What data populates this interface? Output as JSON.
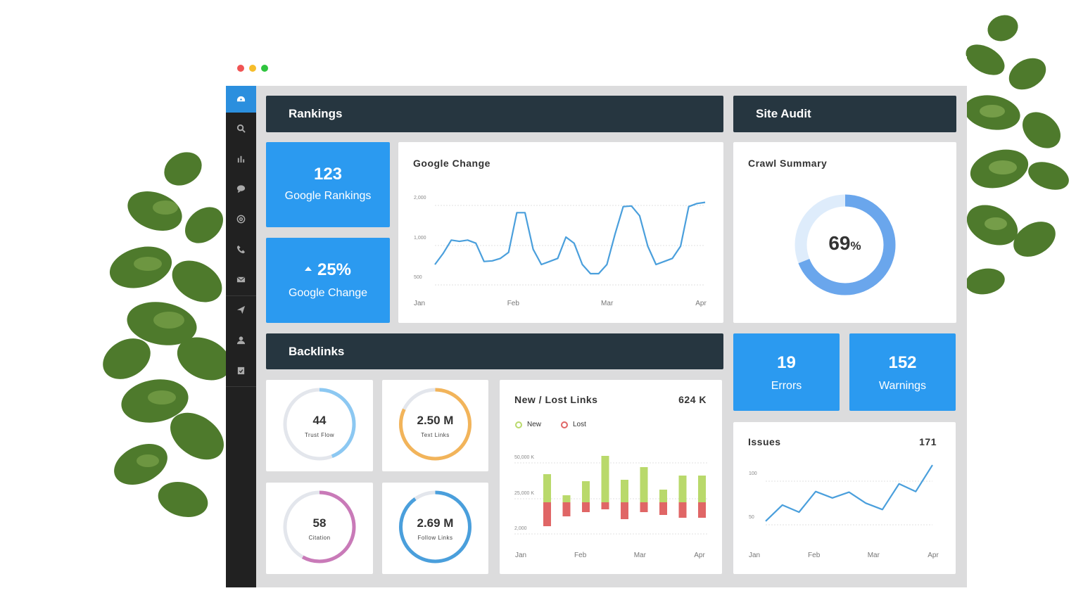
{
  "colors": {
    "accent": "#2b9af0",
    "header": "#263640",
    "sidebar": "#212121",
    "line": "#4a9fdc",
    "new": "#b9d96b",
    "lost": "#e06666"
  },
  "sidebar": {
    "icons": [
      "dashboard-icon",
      "search-icon",
      "bar-chart-icon",
      "chat-icon",
      "at-icon",
      "phone-icon",
      "mail-icon",
      "send-icon",
      "user-icon",
      "clipboard-icon"
    ]
  },
  "rankings": {
    "header": "Rankings",
    "rankings_value": "123",
    "rankings_label": "Google Rankings",
    "change_value": "25%",
    "change_label": "Google Change"
  },
  "site_audit": {
    "header": "Site Audit",
    "crawl_title": "Crawl Summary",
    "crawl_value": "69",
    "crawl_unit": "%",
    "crawl_fraction": 0.69,
    "errors_value": "19",
    "errors_label": "Errors",
    "warnings_value": "152",
    "warnings_label": "Warnings"
  },
  "backlinks": {
    "header": "Backlinks",
    "rings": [
      {
        "value": "44",
        "label": "Trust Flow",
        "color": "#8cc8f2",
        "fraction": 0.44
      },
      {
        "value": "2.50 M",
        "label": "Text Links",
        "color": "#f2b45a",
        "fraction": 0.82
      },
      {
        "value": "58",
        "label": "Citation",
        "color": "#c97ab8",
        "fraction": 0.58
      },
      {
        "value": "2.69 M",
        "label": "Follow Links",
        "color": "#4a9fdc",
        "fraction": 0.9
      }
    ]
  },
  "google_change_chart": {
    "title": "Google Change"
  },
  "links_chart": {
    "title": "New / Lost Links",
    "total": "624 K",
    "legend_new": "New",
    "legend_lost": "Lost"
  },
  "issues_chart": {
    "title": "Issues",
    "total": "171"
  },
  "chart_data": [
    {
      "type": "line",
      "title": "Google Change",
      "x_ticks": [
        "Jan",
        "Feb",
        "Mar",
        "Apr"
      ],
      "y_ticks": [
        "2,000",
        "1,000",
        "500"
      ],
      "values": [
        1000,
        1180,
        1400,
        1380,
        1400,
        1350,
        1050,
        1060,
        1100,
        1200,
        1850,
        1850,
        1250,
        1000,
        1050,
        1100,
        1450,
        1350,
        1000,
        850,
        850,
        1000,
        1500,
        1950,
        1960,
        1800,
        1300,
        1000,
        1050,
        1100,
        1300,
        1950,
        2000,
        2020
      ]
    },
    {
      "type": "bar",
      "title": "New / Lost Links",
      "x_ticks": [
        "Jan",
        "Feb",
        "Mar",
        "Apr"
      ],
      "y_ticks": [
        "50,000 K",
        "25,000 K",
        "2,000"
      ],
      "series": [
        {
          "name": "New",
          "values": [
            20000,
            5000,
            15000,
            33000,
            16000,
            25000,
            9000,
            19000,
            19000
          ]
        },
        {
          "name": "Lost",
          "values": [
            17000,
            10000,
            7000,
            5000,
            12000,
            7000,
            9000,
            11000,
            11000
          ]
        }
      ]
    },
    {
      "type": "line",
      "title": "Issues",
      "x_ticks": [
        "Jan",
        "Feb",
        "Mar",
        "Apr"
      ],
      "y_ticks": [
        "100",
        "50"
      ],
      "values": [
        50,
        75,
        64,
        96,
        86,
        95,
        78,
        68,
        108,
        96,
        137
      ]
    }
  ]
}
